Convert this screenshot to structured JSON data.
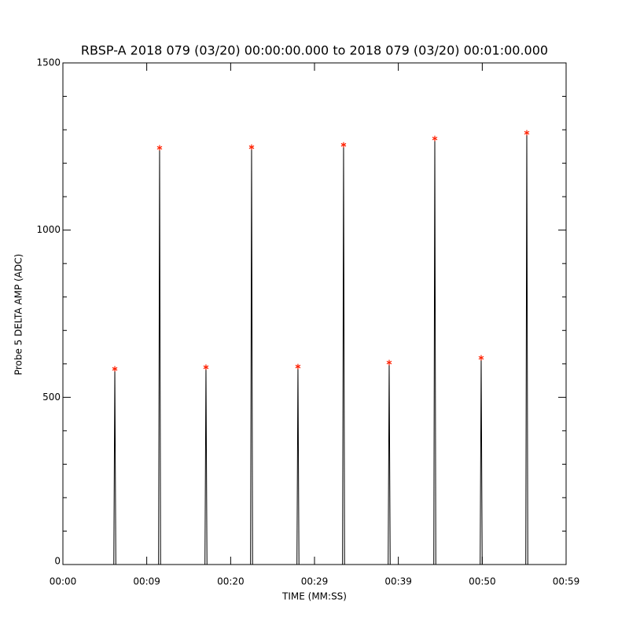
{
  "chart_data": {
    "type": "line",
    "title": "RBSP-A 2018 079 (03/20) 00:00:00.000 to 2018 079 (03/20) 00:01:00.000",
    "x_label": "TIME (MM:SS)",
    "y_label": "Probe 5 DELTA AMP (ADC)",
    "xlim": [
      0,
      59.9
    ],
    "xticks": [
      {
        "value": 0,
        "label": "00:00"
      },
      {
        "value": 9.98,
        "label": "00:09"
      },
      {
        "value": 19.97,
        "label": "00:20"
      },
      {
        "value": 29.95,
        "label": "00:29"
      },
      {
        "value": 39.93,
        "label": "00:39"
      },
      {
        "value": 49.92,
        "label": "00:50"
      },
      {
        "value": 59.9,
        "label": "00:59"
      }
    ],
    "ylim": [
      0,
      1500
    ],
    "yticks": [
      0,
      500,
      1000,
      1500
    ],
    "yminor_ticks": [
      100,
      200,
      300,
      400,
      600,
      700,
      800,
      900,
      1100,
      1200,
      1300,
      1400
    ],
    "series": [
      {
        "color": "#000000",
        "x": [
          0,
          6.06,
          6.18,
          6.3,
          11.39,
          11.51,
          11.63,
          16.91,
          17.03,
          17.15,
          22.34,
          22.46,
          22.58,
          27.86,
          27.98,
          28.1,
          33.29,
          33.41,
          33.53,
          38.72,
          38.84,
          38.96,
          44.15,
          44.27,
          44.39,
          49.67,
          49.79,
          49.91,
          55.1,
          55.22,
          55.34,
          59.9
        ],
        "values": [
          0,
          0,
          585,
          0,
          0,
          1246,
          0,
          0,
          590,
          0,
          0,
          1248,
          0,
          0,
          592,
          0,
          0,
          1255,
          0,
          0,
          604,
          0,
          0,
          1274,
          0,
          0,
          618,
          0,
          0,
          1291,
          0,
          0
        ]
      },
      {
        "color": "#ff2000",
        "marker": "*",
        "x": [
          6.18,
          11.51,
          17.03,
          22.46,
          27.98,
          33.41,
          38.84,
          44.27,
          49.79,
          55.22
        ],
        "values": [
          585,
          1246,
          590,
          1248,
          592,
          1255,
          604,
          1274,
          618,
          1291
        ]
      }
    ]
  }
}
